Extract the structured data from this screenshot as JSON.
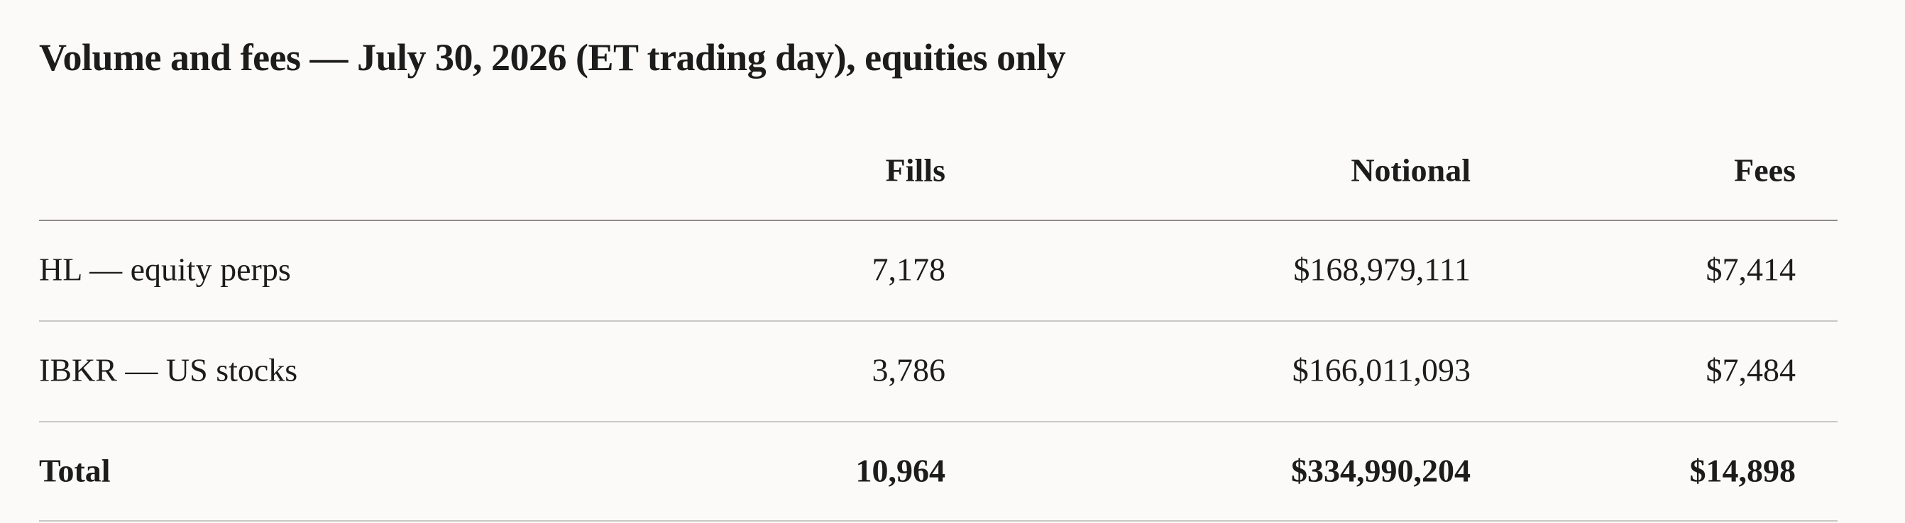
{
  "title": "Volume and fees — July 30, 2026 (ET trading day), equities only",
  "table": {
    "columns": [
      "Fills",
      "Notional",
      "Fees"
    ],
    "rows": [
      {
        "label": "HL — equity perps",
        "cells": [
          "7,178",
          "$168,979,111",
          "$7,414"
        ]
      },
      {
        "label": "IBKR — US stocks",
        "cells": [
          "3,786",
          "$166,011,093",
          "$7,484"
        ]
      }
    ],
    "total": {
      "label": "Total",
      "cells": [
        "10,964",
        "$334,990,204",
        "$14,898"
      ]
    }
  }
}
